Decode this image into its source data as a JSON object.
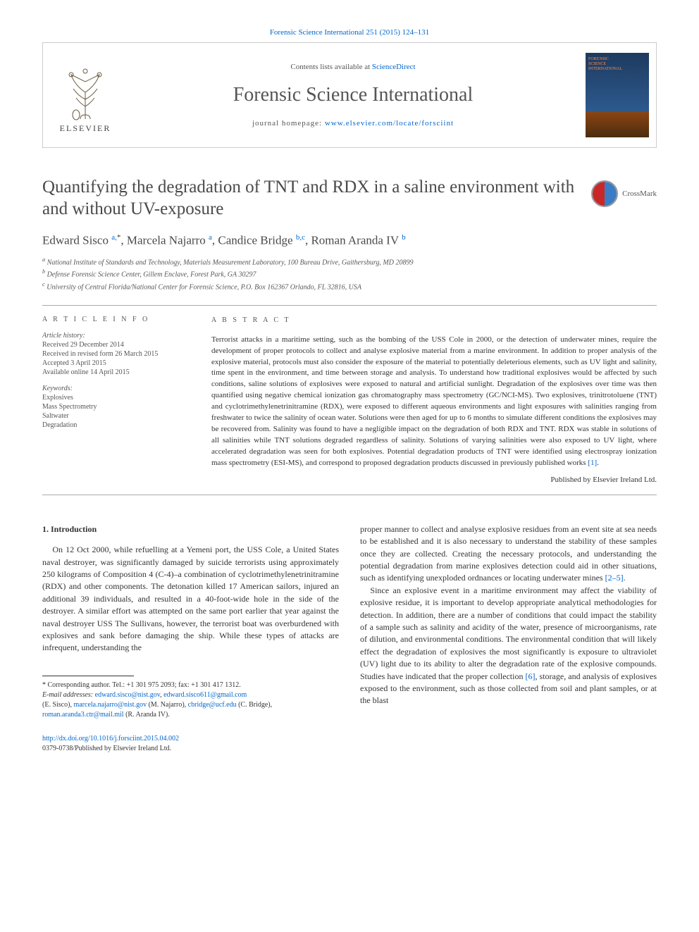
{
  "top_link": "Forensic Science International 251 (2015) 124–131",
  "header": {
    "contents_prefix": "Contents lists available at ",
    "contents_link": "ScienceDirect",
    "journal_name": "Forensic Science International",
    "homepage_prefix": "journal homepage: ",
    "homepage_link": "www.elsevier.com/locate/forsciint",
    "elsevier_label": "ELSEVIER",
    "cover_lines": [
      "FORENSIC",
      "SCIENCE",
      "INTERNATIONAL"
    ]
  },
  "crossmark_label": "CrossMark",
  "title": "Quantifying the degradation of TNT and RDX in a saline environment with and without UV-exposure",
  "authors_html": "Edward Sisco <sup>a,</sup><sup class='sup-black'>*</sup>, Marcela Najarro <sup>a</sup>, Candice Bridge <sup>b,c</sup>, Roman Aranda IV <sup>b</sup>",
  "affiliations": [
    "a National Institute of Standards and Technology, Materials Measurement Laboratory, 100 Bureau Drive, Gaithersburg, MD 20899",
    "b Defense Forensic Science Center, Gillem Enclave, Forest Park, GA 30297",
    "c University of Central Florida/National Center for Forensic Science, P.O. Box 162367 Orlando, FL 32816, USA"
  ],
  "info": {
    "heading": "A R T I C L E   I N F O",
    "history_label": "Article history:",
    "history": [
      "Received 29 December 2014",
      "Received in revised form 26 March 2015",
      "Accepted 3 April 2015",
      "Available online 14 April 2015"
    ],
    "keywords_label": "Keywords:",
    "keywords": [
      "Explosives",
      "Mass Spectrometry",
      "Saltwater",
      "Degradation"
    ]
  },
  "abstract": {
    "heading": "A B S T R A C T",
    "text": "Terrorist attacks in a maritime setting, such as the bombing of the USS Cole in 2000, or the detection of underwater mines, require the development of proper protocols to collect and analyse explosive material from a marine environment. In addition to proper analysis of the explosive material, protocols must also consider the exposure of the material to potentially deleterious elements, such as UV light and salinity, time spent in the environment, and time between storage and analysis. To understand how traditional explosives would be affected by such conditions, saline solutions of explosives were exposed to natural and artificial sunlight. Degradation of the explosives over time was then quantified using negative chemical ionization gas chromatography mass spectrometry (GC/NCI-MS). Two explosives, trinitrotoluene (TNT) and cyclotrimethylenetrinitramine (RDX), were exposed to different aqueous environments and light exposures with salinities ranging from freshwater to twice the salinity of ocean water. Solutions were then aged for up to 6 months to simulate different conditions the explosives may be recovered from. Salinity was found to have a negligible impact on the degradation of both RDX and TNT. RDX was stable in solutions of all salinities while TNT solutions degraded regardless of salinity. Solutions of varying salinities were also exposed to UV light, where accelerated degradation was seen for both explosives. Potential degradation products of TNT were identified using electrospray ionization mass spectrometry (ESI-MS), and correspond to proposed degradation products discussed in previously published works ",
    "ref": "[1]",
    "published_by": "Published by Elsevier Ireland Ltd."
  },
  "section_heading": "1. Introduction",
  "col1_p1": "On 12 Oct 2000, while refuelling at a Yemeni port, the USS Cole, a United States naval destroyer, was significantly damaged by suicide terrorists using approximately 250 kilograms of Composition 4 (C-4)–a combination of cyclotrimethylenetrinitramine (RDX) and other components. The detonation killed 17 American sailors, injured an additional 39 individuals, and resulted in a 40-foot-wide hole in the side of the destroyer. A similar effort was attempted on the same port earlier that year against the naval destroyer USS The Sullivans, however, the terrorist boat was overburdened with explosives and sank before damaging the ship. While these types of attacks are infrequent, understanding the",
  "col2_p1": "proper manner to collect and analyse explosive residues from an event site at sea needs to be established and it is also necessary to understand the stability of these samples once they are collected. Creating the necessary protocols, and understanding the potential degradation from marine explosives detection could aid in other situations, such as identifying unexploded ordnances or locating underwater mines ",
  "col2_ref1": "[2–5]",
  "col2_p2a": "Since an explosive event in a maritime environment may affect the viability of explosive residue, it is important to develop appropriate analytical methodologies for detection. In addition, there are a number of conditions that could impact the stability of a sample such as salinity and acidity of the water, presence of microorganisms, rate of dilution, and environmental conditions. The environmental condition that will likely effect the degradation of explosives the most significantly is exposure to ultraviolet (UV) light due to its ability to alter the degradation rate of the explosive compounds. Studies have indicated that the proper collection ",
  "col2_ref2": "[6]",
  "col2_p2b": ", storage, and analysis of explosives exposed to the environment, such as those collected from soil and plant samples, or at the blast",
  "footnotes": {
    "corresponding": "* Corresponding author. Tel.: +1 301 975 2093; fax: +1 301 417 1312.",
    "emails_label": "E-mail addresses: ",
    "emails": [
      {
        "addr": "edward.sisco@nist.gov",
        "after": ", "
      },
      {
        "addr": "edward.sisco611@gmail.com",
        "after": ""
      }
    ],
    "line2_prefix": "(E. Sisco), ",
    "line2_emails": [
      {
        "addr": "marcela.najarro@nist.gov",
        "after": " (M. Najarro), "
      },
      {
        "addr": "cbridge@ucf.edu",
        "after": " (C. Bridge),"
      }
    ],
    "line3_emails": [
      {
        "addr": "roman.aranda3.ctr@mail.mil",
        "after": " (R. Aranda IV)."
      }
    ]
  },
  "bottom": {
    "doi": "http://dx.doi.org/10.1016/j.forsciint.2015.04.002",
    "issn_line": "0379-0738/Published by Elsevier Ireland Ltd."
  },
  "colors": {
    "link": "#0066cc",
    "heading_gray": "#4a4a4a",
    "light_gray_text": "#555555",
    "rule": "#aaaaaa"
  }
}
